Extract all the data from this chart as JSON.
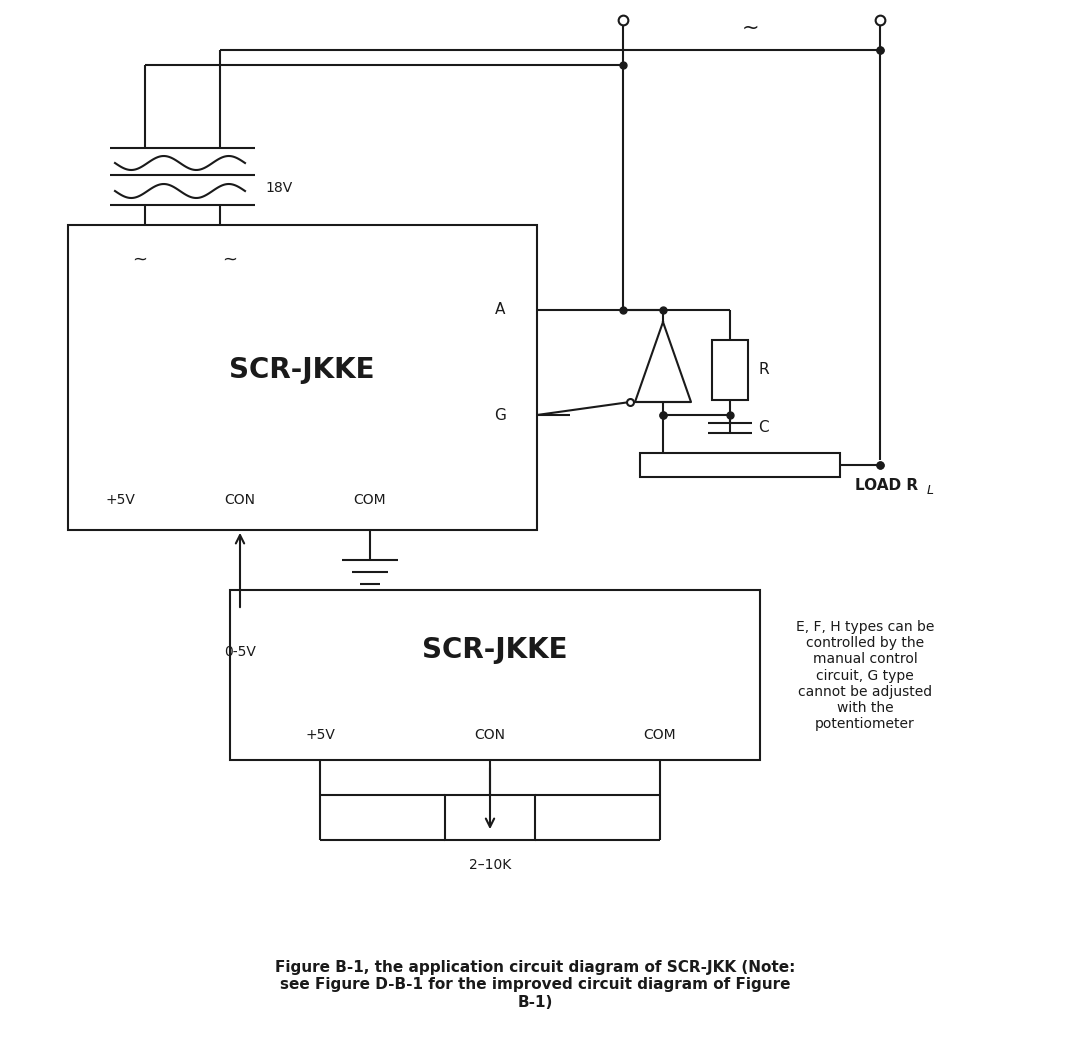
{
  "bg_color": "#ffffff",
  "line_color": "#1a1a1a",
  "title": "SCR-JKKE",
  "title2": "SCR-JKKE",
  "label_18V": "18V",
  "label_A": "A",
  "label_G": "G",
  "label_5V": "+5V",
  "label_CON": "CON",
  "label_COM": "COM",
  "label_05V": "0-5V",
  "label_R": "R",
  "label_C": "C",
  "label_LOAD": "LOAD R",
  "label_2_10K": "2–10K",
  "caption": "Figure B-1, the application circuit diagram of SCR-JKK (Note:\nsee Figure D-B-1 for the improved circuit diagram of Figure\nB-1)",
  "note": "E, F, H types can be\ncontrolled by the\nmanual control\ncircuit, G type\ncannot be adjusted\nwith the\npotentiometer"
}
